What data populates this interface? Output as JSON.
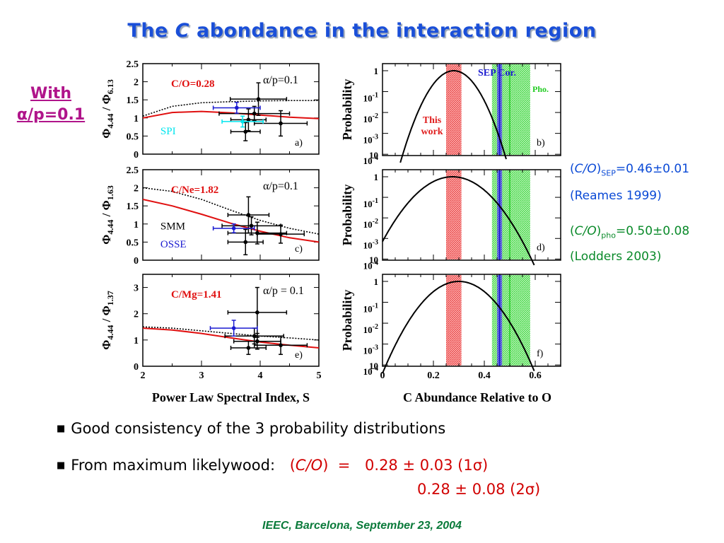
{
  "slide": {
    "title_pre": "The ",
    "title_em": "C",
    "title_post": " abondance in the interaction region",
    "with_line1": "With",
    "with_line2": "α/p=0.1",
    "notes": {
      "sep_pre": "(",
      "sep_em": "C/O",
      "sep_close": ")",
      "sep_sub": "SEP",
      "sep_val": "=0.46±0.01",
      "sep_ref": "(Reames 1999)",
      "pho_pre": "(",
      "pho_em": "C/O",
      "pho_close": ")",
      "pho_sub": "pho",
      "pho_val": "=0.50±0.08",
      "pho_ref": "(Lodders 2003)"
    },
    "bullet1": "Good consistency of the 3 probability distributions",
    "bullet2_label": "From maximum likelywood:",
    "bullet2_expr_pre": "(",
    "bullet2_expr_em": "C/O",
    "bullet2_expr_post": ")  =",
    "bullet2_val1": "0.28 ± 0.03 (1σ)",
    "bullet2_val2": "0.28 ± 0.08 (2σ)",
    "footer": "IEEC, Barcelona, September 23, 2004"
  },
  "chart_data": [
    {
      "panel": "a)",
      "type": "scatter",
      "ylabel": "Φ4.44 / Φ6.13",
      "ylim": [
        0,
        2.5
      ],
      "yticks": [
        "0",
        "0.5",
        "1",
        "1.5",
        "2",
        "2.5"
      ],
      "xlim": [
        2,
        5
      ],
      "ratio_label": "C/O=0.28",
      "alpha_label": "α/p=0.1",
      "instrument_labels": [
        {
          "text": "SPI",
          "color": "#00e5ee",
          "x": 2.3,
          "y": 0.55
        }
      ],
      "model_red": {
        "x": [
          2,
          2.5,
          3,
          3.5,
          4,
          4.5,
          5
        ],
        "y": [
          1.0,
          1.15,
          1.18,
          1.14,
          1.08,
          1.02,
          0.98
        ]
      },
      "model_dotted": {
        "x": [
          2,
          2.5,
          3,
          3.5,
          4,
          4.5,
          5
        ],
        "y": [
          1.05,
          1.32,
          1.42,
          1.45,
          1.47,
          1.48,
          1.48
        ]
      },
      "points": [
        {
          "x": 3.97,
          "y": 1.52,
          "xerr": 0.48,
          "yerr": 0.45,
          "color": "#000000"
        },
        {
          "x": 3.9,
          "y": 1.12,
          "xerr": 0.6,
          "yerr": 0.2,
          "color": "#000000"
        },
        {
          "x": 3.8,
          "y": 0.95,
          "xerr": 0.3,
          "yerr": 0.3,
          "color": "#000000"
        },
        {
          "x": 3.75,
          "y": 0.62,
          "xerr": 0.25,
          "yerr": 0.25,
          "color": "#000000"
        },
        {
          "x": 4.35,
          "y": 0.85,
          "xerr": 0.45,
          "yerr": 0.35,
          "color": "#000000"
        },
        {
          "x": 3.6,
          "y": 1.28,
          "xerr": 0.4,
          "yerr": 0.15,
          "color": "#1a1ad0"
        },
        {
          "x": 3.7,
          "y": 0.9,
          "xerr": 0.35,
          "yerr": 0.15,
          "color": "#00e5ee"
        }
      ]
    },
    {
      "panel": "c)",
      "type": "scatter",
      "ylabel": "Φ4.44 / Φ1.63",
      "ylim": [
        0,
        2.5
      ],
      "yticks": [
        "0",
        "0.5",
        "1",
        "1.5",
        "2",
        "2.5"
      ],
      "xlim": [
        2,
        5
      ],
      "ratio_label": "C/Ne=1.82",
      "alpha_label": "α/p=0.1",
      "instrument_labels": [
        {
          "text": "SMM",
          "color": "#000000",
          "x": 2.3,
          "y": 0.85
        },
        {
          "text": "OSSE",
          "color": "#1a1ad0",
          "x": 2.3,
          "y": 0.35
        }
      ],
      "model_red": {
        "x": [
          2,
          2.5,
          3,
          3.5,
          4,
          4.5,
          5
        ],
        "y": [
          1.68,
          1.5,
          1.27,
          1.02,
          0.8,
          0.62,
          0.5
        ]
      },
      "model_dotted": {
        "x": [
          2,
          2.5,
          3,
          3.5,
          4,
          4.5,
          5
        ],
        "y": [
          2.0,
          1.9,
          1.68,
          1.38,
          1.1,
          0.88,
          0.72
        ]
      },
      "points": [
        {
          "x": 3.8,
          "y": 1.25,
          "xerr": 0.35,
          "yerr": 0.5,
          "color": "#000000"
        },
        {
          "x": 3.85,
          "y": 0.95,
          "xerr": 0.5,
          "yerr": 0.25,
          "color": "#000000"
        },
        {
          "x": 3.95,
          "y": 0.75,
          "xerr": 0.5,
          "yerr": 0.3,
          "color": "#000000"
        },
        {
          "x": 4.35,
          "y": 0.72,
          "xerr": 0.4,
          "yerr": 0.25,
          "color": "#000000"
        },
        {
          "x": 3.75,
          "y": 0.5,
          "xerr": 0.3,
          "yerr": 0.35,
          "color": "#000000"
        },
        {
          "x": 3.55,
          "y": 0.88,
          "xerr": 0.35,
          "yerr": 0.12,
          "color": "#1a1ad0"
        }
      ]
    },
    {
      "panel": "e)",
      "type": "scatter",
      "ylabel": "Φ4.44 / Φ1.37",
      "ylim": [
        0,
        3.5
      ],
      "yticks": [
        "0",
        "1",
        "2",
        "3"
      ],
      "xlim": [
        2,
        5
      ],
      "xticks": [
        "2",
        "3",
        "4",
        "5"
      ],
      "xlabel": "Power Law Spectral Index, S",
      "ratio_label": "C/Mg=1.41",
      "alpha_label": "α/p = 0.1",
      "instrument_labels": [],
      "model_red": {
        "x": [
          2,
          2.5,
          3,
          3.5,
          4,
          4.5,
          5
        ],
        "y": [
          1.45,
          1.38,
          1.25,
          1.08,
          0.92,
          0.8,
          0.7
        ]
      },
      "model_dotted": {
        "x": [
          2,
          2.5,
          3,
          3.5,
          4,
          4.5,
          5
        ],
        "y": [
          1.5,
          1.45,
          1.35,
          1.25,
          1.15,
          1.08,
          1.0
        ]
      },
      "points": [
        {
          "x": 3.95,
          "y": 2.05,
          "xerr": 0.5,
          "yerr": 0.95,
          "color": "#000000"
        },
        {
          "x": 3.9,
          "y": 1.15,
          "xerr": 0.5,
          "yerr": 0.3,
          "color": "#000000"
        },
        {
          "x": 3.95,
          "y": 0.95,
          "xerr": 0.4,
          "yerr": 0.3,
          "color": "#000000"
        },
        {
          "x": 3.8,
          "y": 0.7,
          "xerr": 0.3,
          "yerr": 0.25,
          "color": "#000000"
        },
        {
          "x": 4.35,
          "y": 0.8,
          "xerr": 0.45,
          "yerr": 0.35,
          "color": "#000000"
        },
        {
          "x": 3.55,
          "y": 1.45,
          "xerr": 0.4,
          "yerr": 0.3,
          "color": "#1a1ad0"
        }
      ]
    },
    {
      "panel": "b)",
      "type": "line",
      "ylabel": "Probability",
      "yscale": "log",
      "yticks": [
        "1",
        "10-1",
        "10-2",
        "10-3",
        "10-4",
        "10"
      ],
      "xlim": [
        0,
        0.7
      ],
      "bands": [
        {
          "from": 0.25,
          "to": 0.31,
          "color": "#e02020"
        },
        {
          "from": 0.45,
          "to": 0.47,
          "color": "#1a1ad0"
        },
        {
          "from": 0.43,
          "to": 0.58,
          "color": "#22dd22"
        }
      ],
      "labels": [
        {
          "text": "SEP Cor.",
          "color": "#1a1ad0"
        },
        {
          "text": "Pho.",
          "color": "#22cc22"
        },
        {
          "text": "This",
          "color": "#e02020"
        },
        {
          "text": "work",
          "color": "#e02020"
        }
      ],
      "curve": {
        "peak": 0.28,
        "low": 0.07,
        "high": 0.49
      }
    },
    {
      "panel": "d)",
      "type": "line",
      "ylabel": "Probability",
      "yscale": "log",
      "yticks": [
        "1",
        "10-1",
        "10-2",
        "10-3",
        "10-4",
        "10"
      ],
      "xlim": [
        0,
        0.7
      ],
      "bands": [
        {
          "from": 0.25,
          "to": 0.31,
          "color": "#e02020"
        },
        {
          "from": 0.45,
          "to": 0.47,
          "color": "#1a1ad0"
        },
        {
          "from": 0.43,
          "to": 0.58,
          "color": "#22dd22"
        }
      ],
      "labels": [],
      "curve": {
        "peak": 0.24,
        "low": -0.05,
        "high": 0.6
      }
    },
    {
      "panel": "f)",
      "type": "line",
      "ylabel": "Probability",
      "yscale": "log",
      "yticks": [
        "1",
        "10-1",
        "10-2",
        "10-3",
        "10-4",
        "10"
      ],
      "xlim": [
        0,
        0.7
      ],
      "xticks": [
        "0",
        "0.2",
        "0.4",
        "0.6"
      ],
      "xlabel": "C Abundance Relative to O",
      "bands": [
        {
          "from": 0.25,
          "to": 0.31,
          "color": "#e02020"
        },
        {
          "from": 0.45,
          "to": 0.47,
          "color": "#1a1ad0"
        },
        {
          "from": 0.43,
          "to": 0.58,
          "color": "#22dd22"
        }
      ],
      "labels": [],
      "curve": {
        "peak": 0.28,
        "low": 0.0,
        "high": 0.6
      }
    }
  ]
}
